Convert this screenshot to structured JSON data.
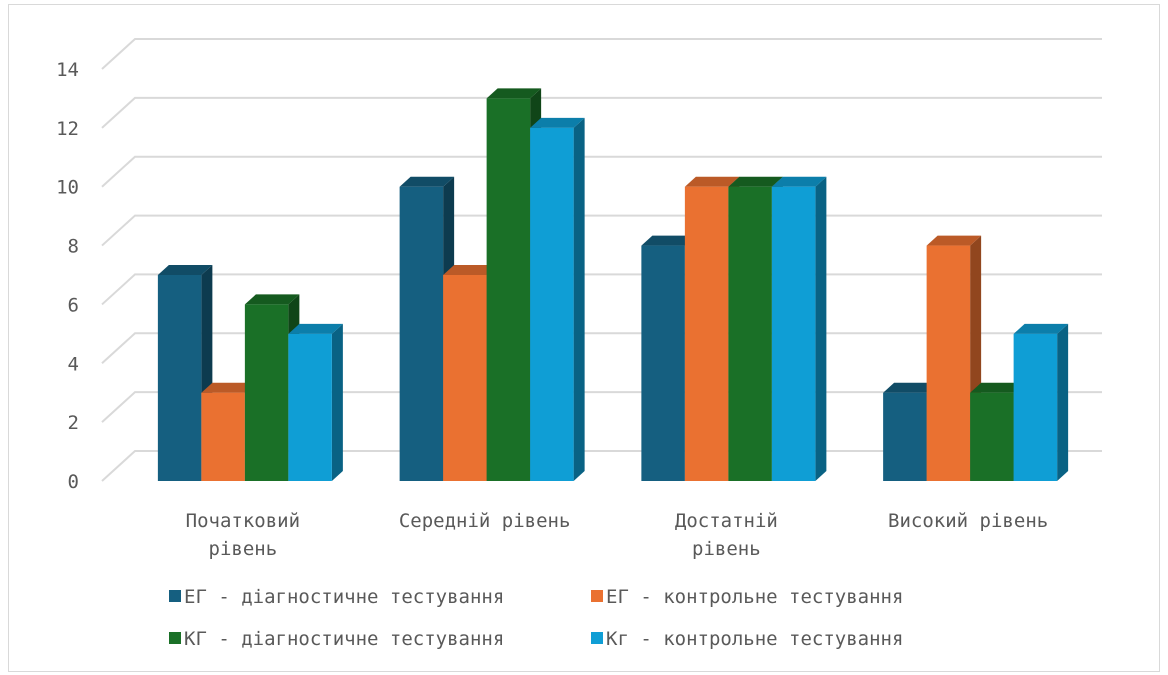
{
  "chart_data": {
    "type": "bar",
    "style": "3d-clustered-column",
    "categories": [
      "Початковий рівень",
      "Середній рівень",
      "Достатній рівень",
      "Високий рівень"
    ],
    "series": [
      {
        "name": "ЕГ - діагностичне тестування",
        "color": "#155f80",
        "values": [
          7,
          10,
          8,
          3
        ]
      },
      {
        "name": "ЕГ - контрольне тестування",
        "color": "#ea7131",
        "values": [
          3,
          7,
          10,
          8
        ]
      },
      {
        "name": "КГ - діагностичне тестування",
        "color": "#1a7027",
        "values": [
          6,
          13,
          10,
          3
        ]
      },
      {
        "name": "Кг - контрольне тестування",
        "color": "#0f9ed5",
        "values": [
          5,
          12,
          10,
          5
        ]
      }
    ],
    "ylim": [
      0,
      14
    ],
    "yticks": [
      0,
      2,
      4,
      6,
      8,
      10,
      12,
      14
    ],
    "grid": true,
    "legend_position": "bottom"
  }
}
